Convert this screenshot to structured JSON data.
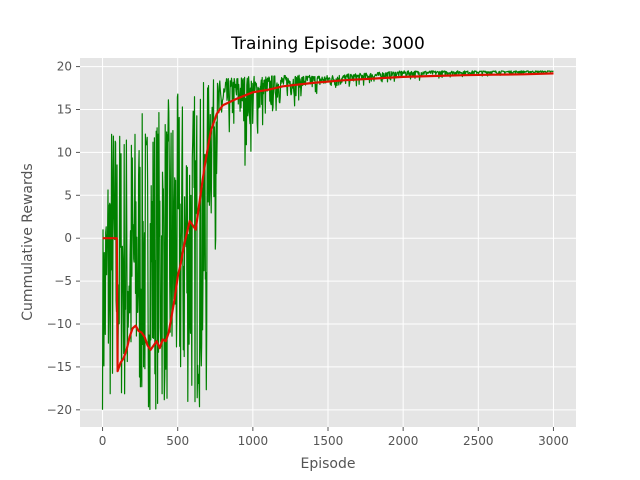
{
  "chart_data": {
    "type": "line",
    "title": "Training Episode: 3000",
    "xlabel": "Episode",
    "ylabel": "Cummulative Rewards",
    "xlim": [
      -150,
      3150
    ],
    "ylim": [
      -22,
      21
    ],
    "grid": true,
    "style": "ggplot",
    "xticks": [
      0,
      500,
      1000,
      1500,
      2000,
      2500,
      3000
    ],
    "yticks": [
      -20,
      -15,
      -10,
      -5,
      0,
      5,
      10,
      15,
      20
    ],
    "xtick_labels": [
      "0",
      "500",
      "1000",
      "1500",
      "2000",
      "2500",
      "3000"
    ],
    "ytick_labels": [
      "−20",
      "−15",
      "−10",
      "−5",
      "0",
      "5",
      "10",
      "15",
      "20"
    ],
    "series": [
      {
        "color": "#008000",
        "description_of_values": "per-episode reward, range sampled from chart",
        "envelope": [
          {
            "x": 0,
            "lo": -20,
            "hi": 2
          },
          {
            "x": 50,
            "lo": -20,
            "hi": 15
          },
          {
            "x": 100,
            "lo": -20,
            "hi": 14
          },
          {
            "x": 200,
            "lo": -20,
            "hi": 14
          },
          {
            "x": 300,
            "lo": -20,
            "hi": 15
          },
          {
            "x": 400,
            "lo": -20,
            "hi": 16
          },
          {
            "x": 500,
            "lo": -20,
            "hi": 17
          },
          {
            "x": 600,
            "lo": -20,
            "hi": 18
          },
          {
            "x": 700,
            "lo": -20,
            "hi": 18.5
          },
          {
            "x": 800,
            "lo": 4,
            "hi": 18.5
          },
          {
            "x": 900,
            "lo": 7,
            "hi": 19
          },
          {
            "x": 1000,
            "lo": 5,
            "hi": 19
          },
          {
            "x": 1200,
            "lo": 14,
            "hi": 19
          },
          {
            "x": 1500,
            "lo": 16,
            "hi": 19
          },
          {
            "x": 2000,
            "lo": 18,
            "hi": 19.5
          },
          {
            "x": 2500,
            "lo": 18.7,
            "hi": 19.5
          },
          {
            "x": 3000,
            "lo": 19,
            "hi": 19.5
          }
        ]
      },
      {
        "color": "#dd1100",
        "x": [
          0,
          50,
          95,
          100,
          110,
          120,
          140,
          160,
          180,
          200,
          220,
          240,
          260,
          280,
          300,
          320,
          340,
          360,
          380,
          400,
          420,
          440,
          460,
          480,
          500,
          520,
          540,
          560,
          580,
          600,
          620,
          640,
          660,
          680,
          700,
          720,
          760,
          800,
          900,
          1000,
          1100,
          1200,
          1400,
          1600,
          1800,
          2000,
          2200,
          2400,
          2600,
          2800,
          3000
        ],
        "y": [
          0,
          0,
          0,
          -15.5,
          -15,
          -14.5,
          -14,
          -13,
          -11.5,
          -10.5,
          -10.2,
          -10.8,
          -11,
          -11.5,
          -12.5,
          -13,
          -12.5,
          -12,
          -12.8,
          -11.8,
          -12,
          -11,
          -9,
          -7,
          -4.5,
          -3,
          -1,
          0.5,
          2,
          1.5,
          1,
          3.5,
          6,
          8.5,
          10.5,
          12.5,
          14.5,
          15.5,
          16.3,
          17,
          17.3,
          17.7,
          18.1,
          18.4,
          18.6,
          18.8,
          18.9,
          19,
          19.05,
          19.1,
          19.2
        ]
      }
    ]
  }
}
